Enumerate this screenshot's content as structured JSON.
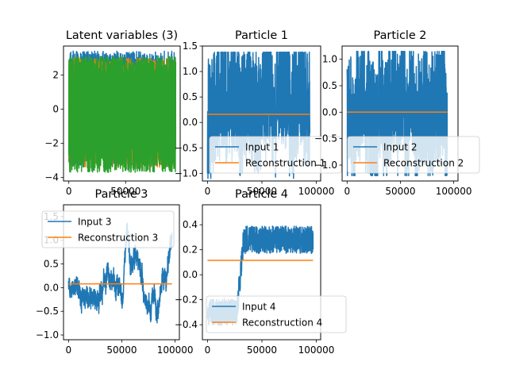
{
  "colors": {
    "blue": "#1f77b4",
    "orange": "#ff7f0e",
    "green": "#2ca02c"
  },
  "chart_data": [
    {
      "type": "line",
      "title": "Latent variables (3)",
      "xlim": [
        -4700,
        98000
      ],
      "ylim": [
        -4.2,
        3.7
      ],
      "xticks": [
        0,
        50000
      ],
      "xtick_labels": [
        "0",
        "50000"
      ],
      "yticks": [
        2,
        0,
        -2,
        -4
      ],
      "ytick_labels": [
        "2",
        "0",
        "−2",
        "−4"
      ],
      "legend": null,
      "series": [
        {
          "color": "#1f77b4",
          "x_range": [
            0,
            94000
          ],
          "center": 0,
          "low": -3.3,
          "high": 3.4
        },
        {
          "color": "#ff7f0e",
          "x_range": [
            0,
            94000
          ],
          "center": 0,
          "low": -3.4,
          "high": 3.0
        },
        {
          "color": "#2ca02c",
          "x_range": [
            0,
            94000
          ],
          "center": 0,
          "low": -3.7,
          "high": 3.1
        }
      ]
    },
    {
      "type": "line",
      "title": "Particle 1",
      "xlim": [
        -4700,
        104000
      ],
      "ylim": [
        -1.15,
        1.5
      ],
      "xticks": [
        0,
        50000,
        100000
      ],
      "xtick_labels": [
        "0",
        "50000",
        "100000"
      ],
      "yticks": [
        1.5,
        1.0,
        0.5,
        0.0,
        -0.5,
        -1.0
      ],
      "ytick_labels": [
        "1.5",
        "1.0",
        "0.5",
        "0.0",
        "−0.5",
        "−1.0"
      ],
      "legend": "lower-right",
      "series": [
        {
          "name": "Input 1",
          "color": "#1f77b4",
          "kind": "noise",
          "x_range": [
            0,
            94000
          ],
          "low": -1.1,
          "high": 1.38
        },
        {
          "name": "Reconstruction 1",
          "color": "#ff7f0e",
          "kind": "flat",
          "x_range": [
            0,
            94000
          ],
          "value": 0.16
        }
      ]
    },
    {
      "type": "line",
      "title": "Particle 2",
      "xlim": [
        -4700,
        104000
      ],
      "ylim": [
        -1.3,
        1.25
      ],
      "xticks": [
        0,
        50000,
        100000
      ],
      "xtick_labels": [
        "0",
        "50000",
        "100000"
      ],
      "yticks": [
        1.0,
        0.5,
        0.0,
        -0.5,
        -1.0
      ],
      "ytick_labels": [
        "1.0",
        "0.5",
        "0.0",
        "−0.5",
        "−1.0"
      ],
      "legend": "lower-right",
      "series": [
        {
          "name": "Input 2",
          "color": "#1f77b4",
          "kind": "noise",
          "x_range": [
            0,
            94000
          ],
          "low": -1.2,
          "high": 1.15
        },
        {
          "name": "Reconstruction 2",
          "color": "#ff7f0e",
          "kind": "flat",
          "x_range": [
            0,
            94000
          ],
          "value": 0.0
        }
      ]
    },
    {
      "type": "line",
      "title": "Particle 3",
      "xlim": [
        -4700,
        104000
      ],
      "ylim": [
        -1.1,
        1.75
      ],
      "xticks": [
        0,
        50000,
        100000
      ],
      "xtick_labels": [
        "0",
        "50000",
        "100000"
      ],
      "yticks": [
        1.5,
        1.0,
        0.5,
        0.0,
        -0.5,
        -1.0
      ],
      "ytick_labels": [
        "1.5",
        "1.0",
        "0.5",
        "0.0",
        "−0.5",
        "−1.0"
      ],
      "legend": "upper-center",
      "series": [
        {
          "name": "Input 3",
          "color": "#1f77b4",
          "kind": "walk",
          "x_range": [
            0,
            97000
          ],
          "low": -1.0,
          "high": 1.6
        },
        {
          "name": "Reconstruction 3",
          "color": "#ff7f0e",
          "kind": "flat",
          "x_range": [
            0,
            97000
          ],
          "value": 0.08
        }
      ]
    },
    {
      "type": "line",
      "title": "Particle 4",
      "xlim": [
        -4700,
        104000
      ],
      "ylim": [
        -0.52,
        0.56
      ],
      "xticks": [
        0,
        50000,
        100000
      ],
      "xtick_labels": [
        "0",
        "50000",
        "100000"
      ],
      "yticks": [
        0.4,
        0.2,
        0.0,
        -0.2,
        -0.4
      ],
      "ytick_labels": [
        "0.4",
        "0.2",
        "0.0",
        "−0.2",
        "−0.4"
      ],
      "legend": "lower-right",
      "series": [
        {
          "name": "Input 4",
          "color": "#1f77b4",
          "kind": "step",
          "x_range": [
            0,
            97000
          ],
          "low": -0.5,
          "high": 0.5,
          "step_at": 30000
        },
        {
          "name": "Reconstruction 4",
          "color": "#ff7f0e",
          "kind": "flat",
          "x_range": [
            0,
            97000
          ],
          "value": 0.115
        }
      ]
    }
  ]
}
